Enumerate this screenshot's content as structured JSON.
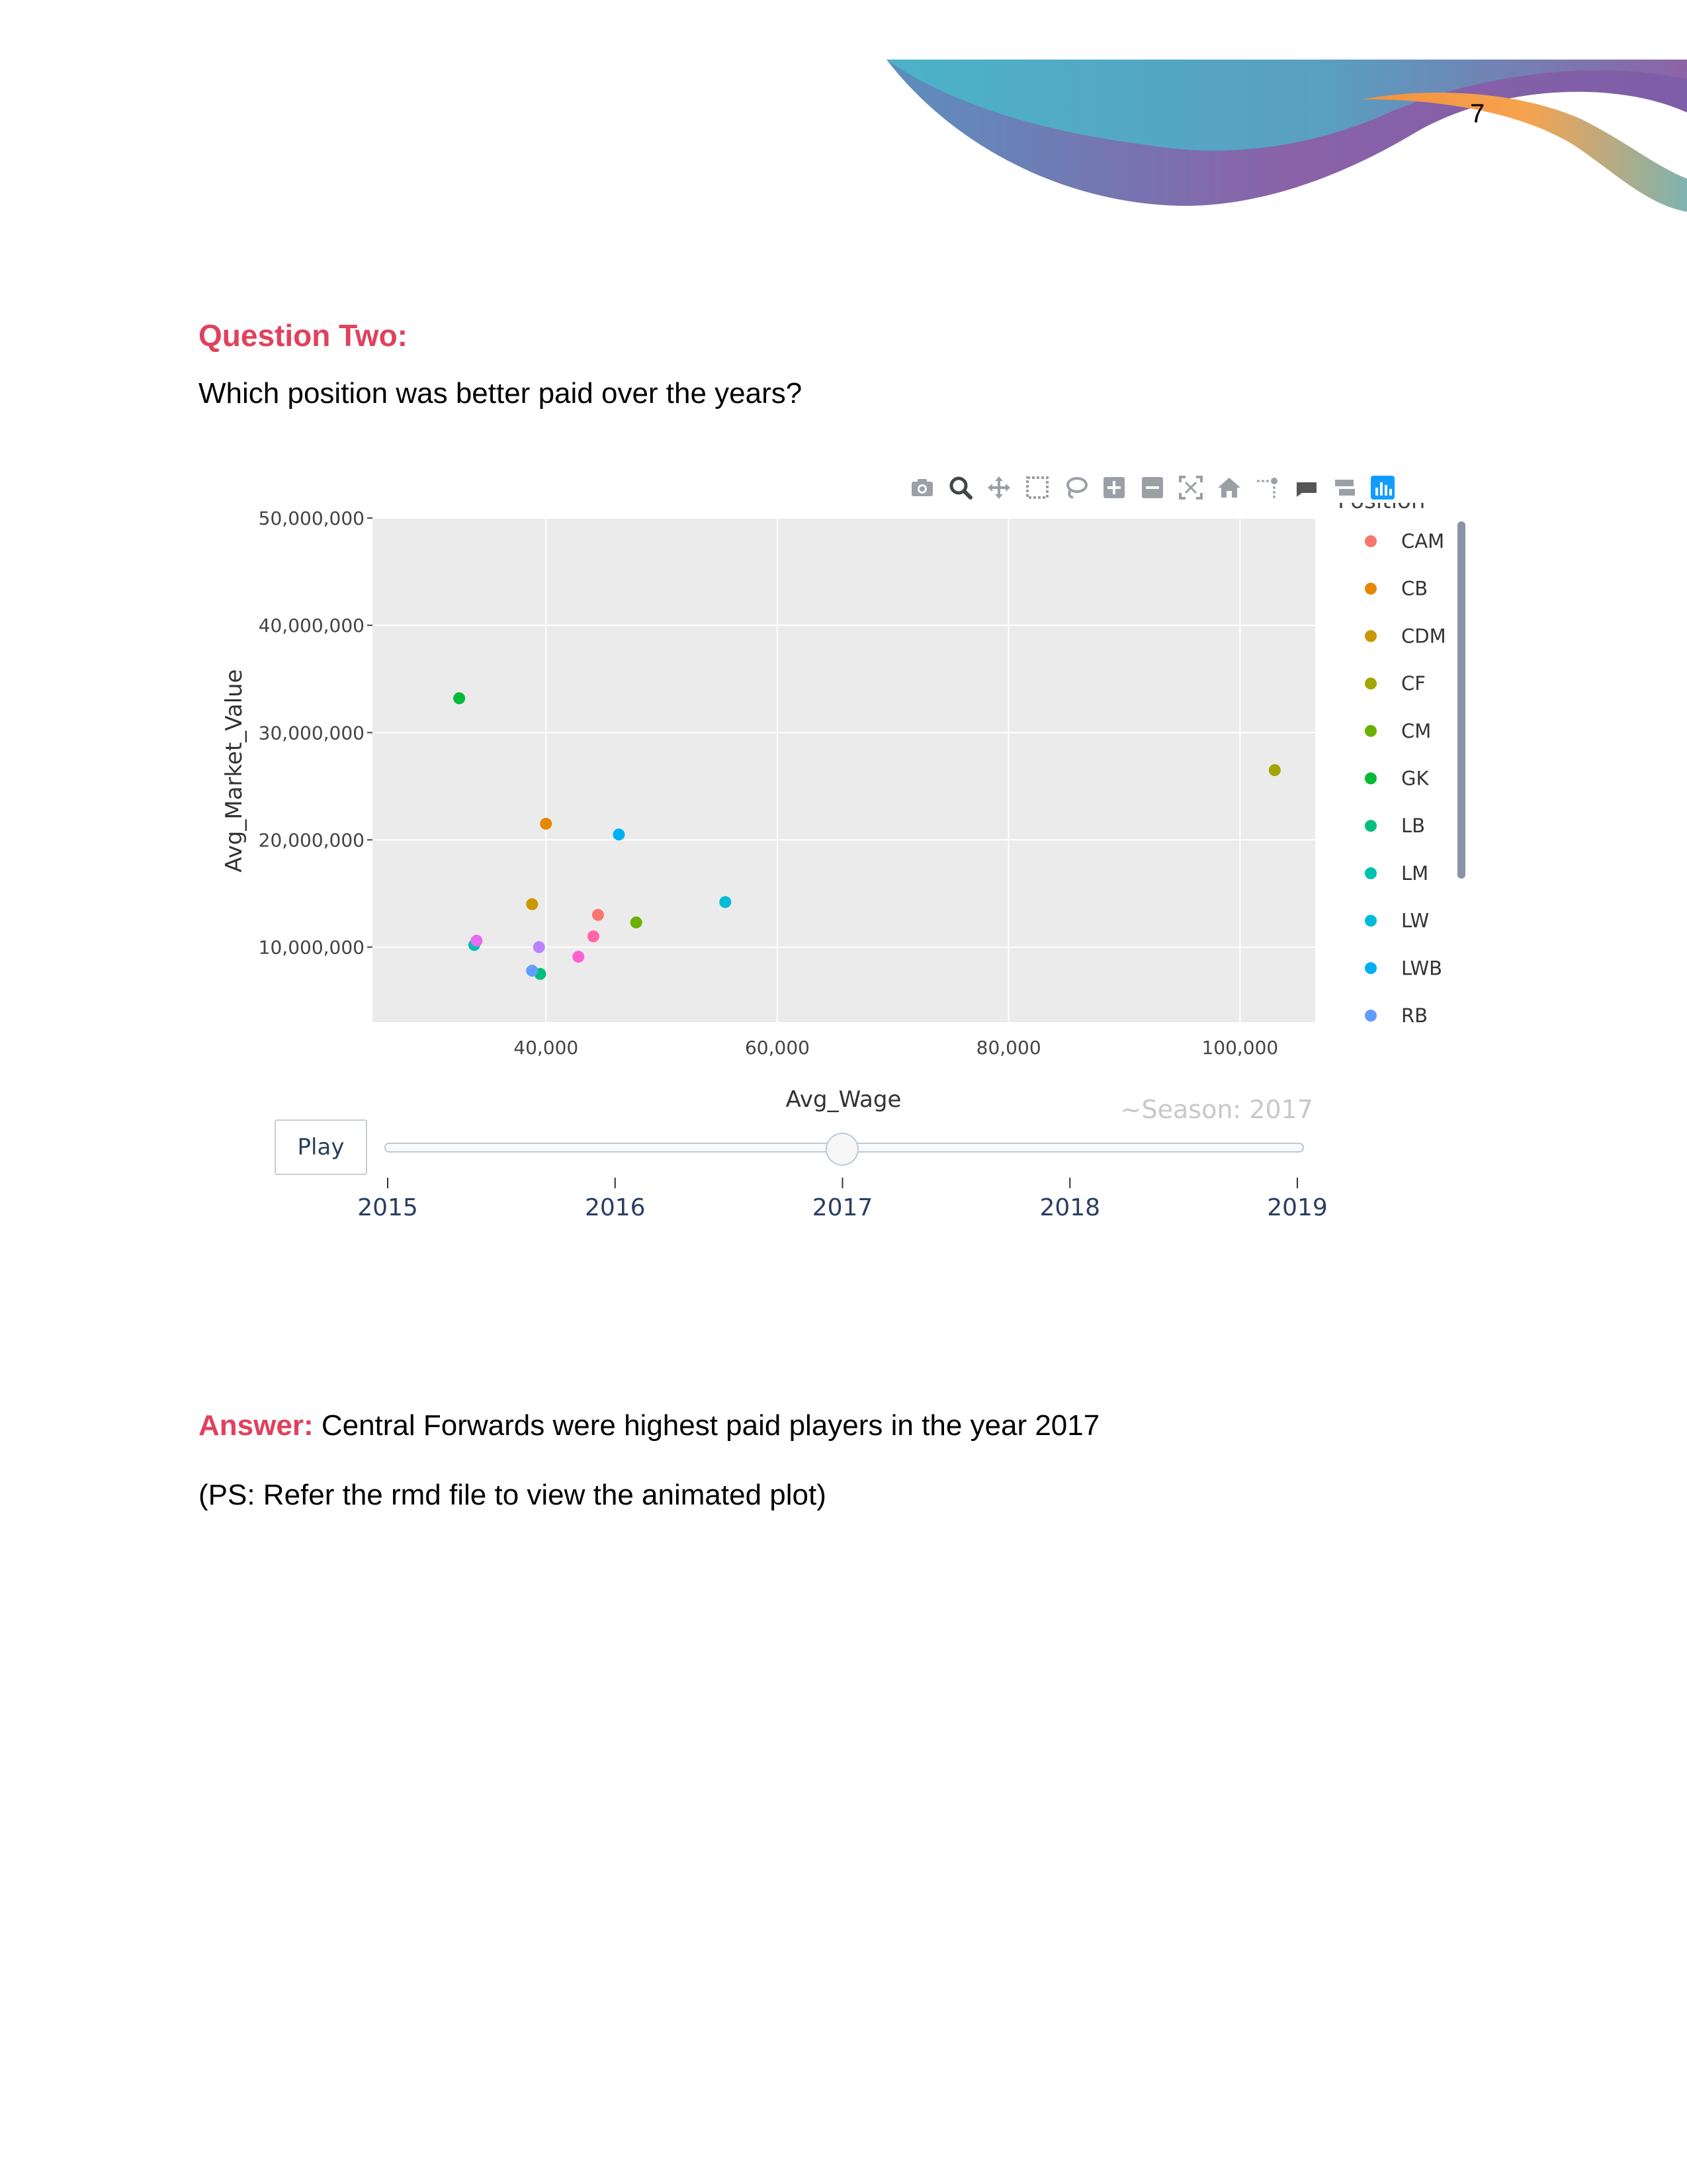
{
  "page": {
    "number": "7"
  },
  "question": {
    "title": "Question Two:",
    "text": "Which position was better paid over the years?"
  },
  "answer": {
    "label": "Answer:",
    "text": " Central Forwards were highest paid players in the year 2017",
    "ps": "(PS: Refer the rmd file to view the animated plot)"
  },
  "modebar": {
    "icons": [
      "camera-icon",
      "zoom-icon",
      "pan-icon",
      "box-select-icon",
      "lasso-select-icon",
      "zoom-in-icon",
      "zoom-out-icon",
      "autoscale-icon",
      "reset-axes-icon",
      "spike-lines-icon",
      "hover-closest-icon",
      "hover-compare-icon",
      "plotly-logo-icon"
    ]
  },
  "chart_data": {
    "type": "scatter",
    "xlabel": "Avg_Wage",
    "ylabel": "Avg_Market_Value",
    "xlim": [
      25000,
      106500
    ],
    "ylim": [
      3000000,
      50000000
    ],
    "xticks": [
      40000,
      60000,
      80000,
      100000
    ],
    "xtick_labels": [
      "40,000",
      "60,000",
      "80,000",
      "100,000"
    ],
    "yticks": [
      10000000,
      20000000,
      30000000,
      40000000,
      50000000
    ],
    "ytick_labels": [
      "10,000,000",
      "20,000,000",
      "30,000,000",
      "40,000,000",
      "50,000,000"
    ],
    "grid": true,
    "legend_title": "Position",
    "legend_placement": "right",
    "legend_visible": [
      "CAM",
      "CB",
      "CDM",
      "CF",
      "CM",
      "GK",
      "LB",
      "LM",
      "LW",
      "LWB",
      "RB"
    ],
    "frame_label": "~Season: 2017",
    "slider": {
      "steps": [
        "2015",
        "2016",
        "2017",
        "2018",
        "2019"
      ],
      "current": "2017",
      "play_label": "Play"
    },
    "series": [
      {
        "name": "CAM",
        "color": "#f8766d",
        "x": 44500,
        "y": 13000000
      },
      {
        "name": "CB",
        "color": "#e58700",
        "x": 40000,
        "y": 21500000
      },
      {
        "name": "CDM",
        "color": "#c99800",
        "x": 38800,
        "y": 14000000
      },
      {
        "name": "CF",
        "color": "#a3a500",
        "x": 103000,
        "y": 26500000
      },
      {
        "name": "CM",
        "color": "#6bb100",
        "x": 47800,
        "y": 12300000
      },
      {
        "name": "GK",
        "color": "#00ba38",
        "x": 32500,
        "y": 33200000
      },
      {
        "name": "LB",
        "color": "#00bf7d",
        "x": 39500,
        "y": 7500000
      },
      {
        "name": "LM",
        "color": "#00c0af",
        "x": 33800,
        "y": 10200000
      },
      {
        "name": "LW",
        "color": "#00bcd8",
        "x": 55500,
        "y": 14200000
      },
      {
        "name": "LWB",
        "color": "#00b0f6",
        "x": 46300,
        "y": 20500000
      },
      {
        "name": "RB",
        "color": "#619cff",
        "x": 38800,
        "y": 7800000
      },
      {
        "name": "",
        "color": "#b983ff",
        "x": 39400,
        "y": 10000000
      },
      {
        "name": "",
        "color": "#e76bf3",
        "x": 34000,
        "y": 10600000
      },
      {
        "name": "",
        "color": "#fd61d1",
        "x": 42800,
        "y": 9100000
      },
      {
        "name": "",
        "color": "#ff67a4",
        "x": 44100,
        "y": 11000000
      }
    ]
  }
}
